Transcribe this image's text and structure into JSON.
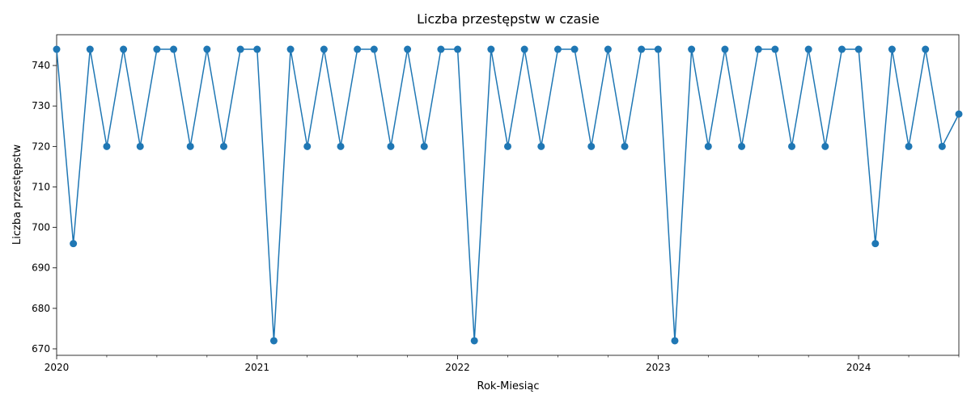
{
  "chart_data": {
    "type": "line",
    "title": "Liczba przestępstw w czasie",
    "xlabel": "Rok-Miesiąc",
    "ylabel": "Liczba przestępstw",
    "x": [
      "2020-01",
      "2020-02",
      "2020-03",
      "2020-04",
      "2020-05",
      "2020-06",
      "2020-07",
      "2020-08",
      "2020-09",
      "2020-10",
      "2020-11",
      "2020-12",
      "2021-01",
      "2021-02",
      "2021-03",
      "2021-04",
      "2021-05",
      "2021-06",
      "2021-07",
      "2021-08",
      "2021-09",
      "2021-10",
      "2021-11",
      "2021-12",
      "2022-01",
      "2022-02",
      "2022-03",
      "2022-04",
      "2022-05",
      "2022-06",
      "2022-07",
      "2022-08",
      "2022-09",
      "2022-10",
      "2022-11",
      "2022-12",
      "2023-01",
      "2023-02",
      "2023-03",
      "2023-04",
      "2023-05",
      "2023-06",
      "2023-07",
      "2023-08",
      "2023-09",
      "2023-10",
      "2023-11",
      "2023-12",
      "2024-01",
      "2024-02",
      "2024-03",
      "2024-04",
      "2024-05",
      "2024-06",
      "2024-07"
    ],
    "series": [
      {
        "values": [
          744,
          696,
          744,
          720,
          744,
          720,
          744,
          744,
          720,
          744,
          720,
          744,
          744,
          672,
          744,
          720,
          744,
          720,
          744,
          744,
          720,
          744,
          720,
          744,
          744,
          672,
          744,
          720,
          744,
          720,
          744,
          744,
          720,
          744,
          720,
          744,
          744,
          672,
          744,
          720,
          744,
          720,
          744,
          744,
          720,
          744,
          720,
          744,
          744,
          696,
          744,
          720,
          744,
          720,
          728
        ],
        "color": "#1f77b4"
      }
    ],
    "xticks": [
      "2020",
      "2021",
      "2022",
      "2023",
      "2024"
    ],
    "yticks": [
      670,
      680,
      690,
      700,
      710,
      720,
      730,
      740
    ],
    "ylim": [
      668.4,
      747.6
    ],
    "grid": false,
    "marker": "circle"
  }
}
